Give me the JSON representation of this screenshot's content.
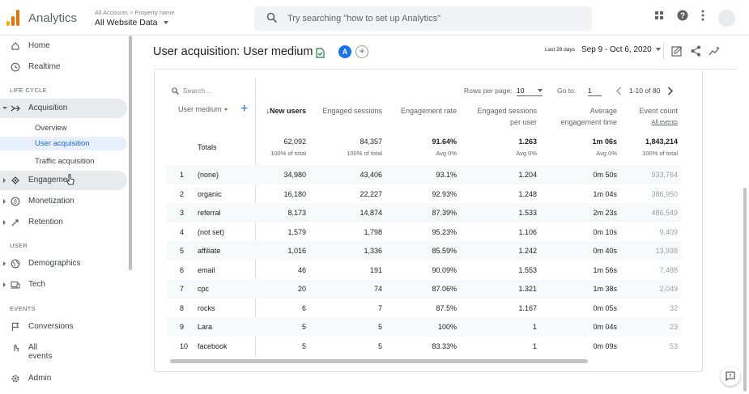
{
  "app": {
    "name": "Analytics",
    "crumbs": "All Accounts > Property name",
    "property": "All Website Data"
  },
  "search": {
    "placeholder": "Try searching \"how to set up Analytics\""
  },
  "sidebar": {
    "home": "Home",
    "realtime": "Realtime",
    "lifecycle_section": "LIFE CYCLE",
    "acquisition": "Acquisition",
    "overview": "Overview",
    "user_acquisition": "User acquisition",
    "traffic_acquisition": "Traffic acquisition",
    "engagement": "Engageme",
    "monetization": "Monetization",
    "retention": "Retention",
    "user_section": "USER",
    "demographics": "Demographics",
    "tech": "Tech",
    "events_section": "EVENTS",
    "conversions": "Conversions",
    "all_events": "All events",
    "admin": "Admin"
  },
  "header": {
    "title": "User acquisition: User medium",
    "badge": "A",
    "date_small": "Last 28 days",
    "date_range": "Sep 9 - Oct 6, 2020"
  },
  "table": {
    "search_placeholder": "Search...",
    "rows_per_page_label": "Rows per page:",
    "rows_per_page": "10",
    "goto_label": "Go to:",
    "goto_value": "1",
    "range": "1-10 of 80",
    "dimension": "User medium",
    "columns": [
      {
        "l1": "↓New users",
        "l2": ""
      },
      {
        "l1": "Engaged sessions",
        "l2": ""
      },
      {
        "l1": "Engagement rate",
        "l2": ""
      },
      {
        "l1": "Engaged sessions",
        "l2": "per user"
      },
      {
        "l1": "Average",
        "l2": "engagement time"
      },
      {
        "l1": "Event count",
        "l2": "All events"
      }
    ],
    "totals_label": "Totals",
    "totals": [
      {
        "value": "62,092",
        "sub": "100% of total"
      },
      {
        "value": "84,357",
        "sub": "100% of total"
      },
      {
        "value": "91.64%",
        "sub": "Avg 0%"
      },
      {
        "value": "1.263",
        "sub": "Avg 0%"
      },
      {
        "value": "1m 06s",
        "sub": "Avg 0%"
      },
      {
        "value": "1,843,214",
        "sub": "100% of total"
      }
    ],
    "rows": [
      {
        "idx": "1",
        "dim": "(none)",
        "v": [
          "34,980",
          "43,406",
          "93.1%",
          "1.204",
          "0m 50s",
          "933,764"
        ]
      },
      {
        "idx": "2",
        "dim": "organic",
        "v": [
          "16,180",
          "22,227",
          "92.93%",
          "1.248",
          "1m 04s",
          "386,950"
        ]
      },
      {
        "idx": "3",
        "dim": "referral",
        "v": [
          "8,173",
          "14,874",
          "87.39%",
          "1.533",
          "2m 23s",
          "486,549"
        ]
      },
      {
        "idx": "4",
        "dim": "(not set)",
        "v": [
          "1,579",
          "1,798",
          "95.23%",
          "1.106",
          "0m 10s",
          "9,409"
        ]
      },
      {
        "idx": "5",
        "dim": "affiliate",
        "v": [
          "1,016",
          "1,336",
          "85.59%",
          "1.242",
          "0m 40s",
          "13,938"
        ]
      },
      {
        "idx": "6",
        "dim": "email",
        "v": [
          "46",
          "191",
          "90.09%",
          "1.553",
          "1m 56s",
          "7,488"
        ]
      },
      {
        "idx": "7",
        "dim": "cpc",
        "v": [
          "20",
          "74",
          "87.06%",
          "1.321",
          "1m 38s",
          "2,049"
        ]
      },
      {
        "idx": "8",
        "dim": "rocks",
        "v": [
          "6",
          "7",
          "87.5%",
          "1.167",
          "0m 05s",
          "32"
        ]
      },
      {
        "idx": "9",
        "dim": "Lara",
        "v": [
          "5",
          "5",
          "100%",
          "1",
          "0m 04s",
          "23"
        ]
      },
      {
        "idx": "10",
        "dim": "facebook",
        "v": [
          "5",
          "5",
          "83.33%",
          "1",
          "0m 09s",
          "53"
        ]
      }
    ]
  }
}
